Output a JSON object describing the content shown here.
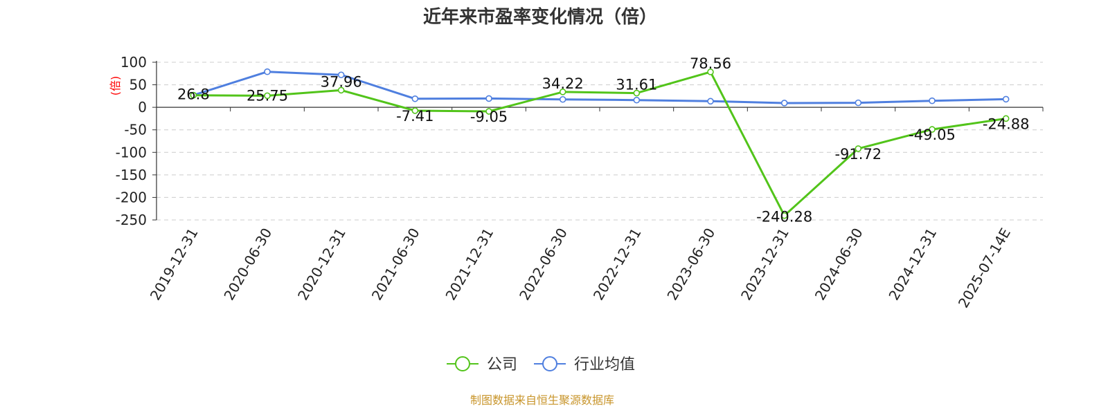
{
  "chart_data": {
    "type": "line",
    "title": "近年来市盈率变化情况（倍）",
    "ylabel": "(倍)",
    "ylim": [
      -250,
      100
    ],
    "yticks": [
      100,
      50,
      0,
      -50,
      -100,
      -150,
      -200,
      -250
    ],
    "grid": true,
    "legend_position": "bottom-center",
    "categories": [
      "2019-12-31",
      "2020-06-30",
      "2020-12-31",
      "2021-06-30",
      "2021-12-31",
      "2022-06-30",
      "2022-12-31",
      "2023-06-30",
      "2023-12-31",
      "2024-06-30",
      "2024-12-31",
      "2025-07-14E"
    ],
    "series": [
      {
        "name": "公司",
        "color": "#52c41a",
        "values": [
          26.8,
          25.75,
          37.96,
          -7.41,
          -9.05,
          34.22,
          31.61,
          78.56,
          -240.28,
          -91.72,
          -49.05,
          -24.88
        ],
        "labels": [
          "26.8",
          "25.75",
          "37.96",
          "-7.41",
          "-9.05",
          "34.22",
          "31.61",
          "78.56",
          "-240.28",
          "-91.72",
          "-49.05",
          "-24.88"
        ]
      },
      {
        "name": "行业均值",
        "color": "#4f7fdf",
        "values": [
          27,
          79,
          72,
          19,
          19.5,
          17.5,
          16,
          13.5,
          9.5,
          10,
          14.5,
          18
        ]
      }
    ]
  },
  "source_text": "制图数据来自恒生聚源数据库"
}
